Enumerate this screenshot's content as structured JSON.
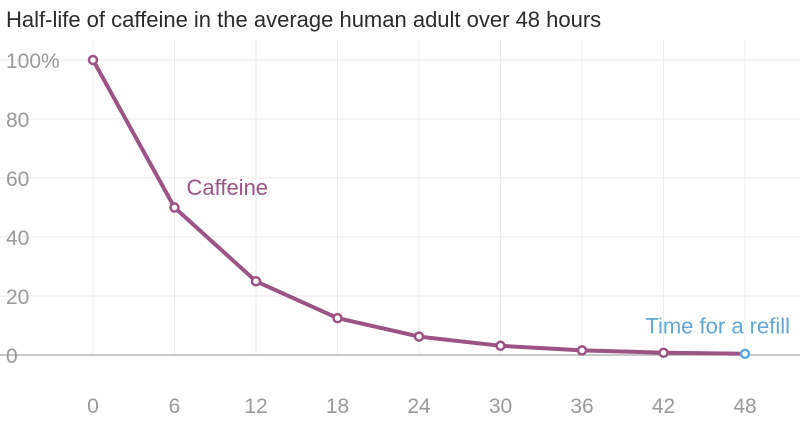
{
  "chart_data": {
    "type": "line",
    "title": "Half-life of caffeine in the average human adult over 48 hours",
    "xlabel": "",
    "ylabel": "",
    "x": [
      0,
      6,
      12,
      18,
      24,
      30,
      36,
      42,
      48
    ],
    "xlim": [
      -3,
      51
    ],
    "ylim": [
      0,
      100
    ],
    "x_ticks": [
      0,
      6,
      12,
      18,
      24,
      30,
      36,
      42,
      48
    ],
    "y_ticks": [
      {
        "value": 100,
        "label": "100%"
      },
      {
        "value": 80,
        "label": "80"
      },
      {
        "value": 60,
        "label": "60"
      },
      {
        "value": 40,
        "label": "40"
      },
      {
        "value": 20,
        "label": "20"
      },
      {
        "value": 0,
        "label": "0"
      }
    ],
    "grid": true,
    "series": [
      {
        "name": "Caffeine",
        "color": "#9b5485",
        "values": [
          100,
          50,
          25,
          12.5,
          6.25,
          3.125,
          1.5625,
          0.78125,
          0.390625
        ]
      }
    ],
    "annotations": [
      {
        "text": "Caffeine",
        "x": 6,
        "y": 57,
        "color": "#9b5485"
      },
      {
        "text": "Time for a refill",
        "x": 48,
        "y": 10,
        "color": "#5fa8d8"
      }
    ],
    "highlight_point": {
      "x": 48,
      "color": "#5fa8d8"
    }
  }
}
